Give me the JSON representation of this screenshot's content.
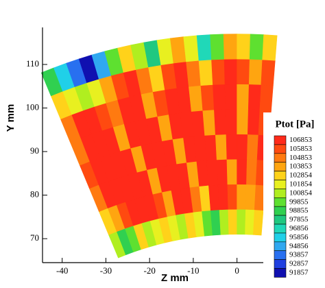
{
  "chart_data": {
    "type": "contour",
    "xlabel": "Z mm",
    "ylabel": "Y mm",
    "xlim": [
      -44.5,
      9
    ],
    "ylim": [
      64.5,
      118.5
    ],
    "xticks": [
      -40,
      -30,
      -20,
      -10,
      0
    ],
    "yticks": [
      70,
      80,
      90,
      100,
      110
    ],
    "field": {
      "r": [
        71,
        76.75,
        82.5,
        88.25,
        94,
        99.75,
        105.5,
        111.25,
        117
      ],
      "angle": [
        -22.5,
        -21,
        -19.5,
        -18,
        -16.5,
        -15,
        -13.5,
        -12,
        -10.5,
        -9,
        -7.5,
        -6,
        -4.5,
        -3,
        -1.5,
        0,
        1.5,
        3,
        4.5
      ],
      "values": [
        [
          101500,
          99500,
          100500,
          103000,
          101500,
          102500,
          103500,
          102000,
          101000,
          103000,
          102500,
          100500,
          99000,
          101000,
          103000,
          101500,
          102000,
          103000
        ],
        [
          103500,
          104500,
          106000,
          107000,
          107000,
          107000,
          106000,
          104000,
          107000,
          107000,
          105500,
          103500,
          107000,
          107000,
          106000,
          104000,
          104500,
          105500
        ],
        [
          105000,
          107000,
          107000,
          107000,
          107000,
          107000,
          104500,
          107000,
          107000,
          107000,
          104000,
          107000,
          107000,
          107000,
          104500,
          107000,
          105500,
          106500
        ],
        [
          106000,
          107000,
          107000,
          107000,
          107000,
          104500,
          107000,
          107000,
          107000,
          104000,
          107000,
          107000,
          107000,
          104500,
          107000,
          107000,
          105000,
          107000
        ],
        [
          105500,
          107000,
          107000,
          107000,
          104500,
          107000,
          107000,
          107000,
          104500,
          107000,
          107000,
          107000,
          104000,
          107000,
          107000,
          104500,
          107000,
          106500
        ],
        [
          105000,
          107000,
          107000,
          106000,
          105500,
          107000,
          107000,
          104500,
          106500,
          107000,
          107000,
          104500,
          106500,
          107000,
          107000,
          104500,
          107000,
          106000
        ],
        [
          103000,
          102000,
          101500,
          102500,
          104000,
          106000,
          107000,
          105500,
          103500,
          106000,
          107000,
          105000,
          103000,
          106000,
          107000,
          106500,
          104000,
          106000
        ],
        [
          99000,
          96000,
          94000,
          92500,
          95000,
          100500,
          103500,
          101500,
          98000,
          102000,
          104500,
          102500,
          97500,
          100000,
          104000,
          103000,
          100000,
          103500
        ]
      ]
    },
    "colorbar": {
      "title": "Ptot [Pa]",
      "levels": [
        106853,
        105853,
        104853,
        103853,
        102854,
        101854,
        100854,
        99855,
        98855,
        97855,
        96856,
        95856,
        94856,
        93857,
        92857,
        91857
      ],
      "colors": [
        "#ff2a1a",
        "#ff4a10",
        "#ff7a10",
        "#ffa510",
        "#ffd21a",
        "#e8f020",
        "#b0ee20",
        "#5ee030",
        "#30d050",
        "#20c880",
        "#20d8b8",
        "#20d0e8",
        "#30a8f0",
        "#2870f0",
        "#2040e0",
        "#1010b0"
      ]
    }
  }
}
